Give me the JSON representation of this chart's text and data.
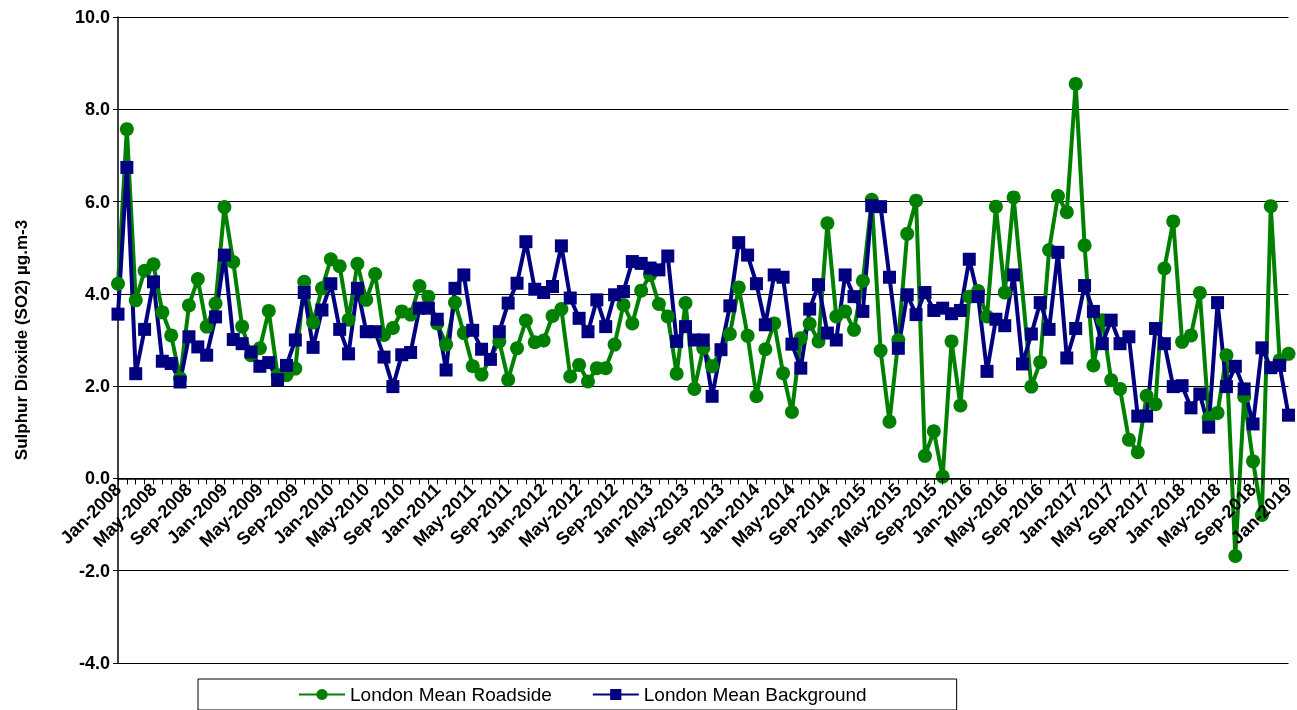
{
  "chart_data": {
    "type": "line",
    "ylabel": "Sulphur Dioxide (SO2) µg.m-3",
    "categories": [
      "Jan-2008",
      null,
      null,
      null,
      "May-2008",
      null,
      null,
      null,
      "Sep-2008",
      null,
      null,
      null,
      "Jan-2009",
      null,
      null,
      null,
      "May-2009",
      null,
      null,
      null,
      "Sep-2009",
      null,
      null,
      null,
      "Jan-2010",
      null,
      null,
      null,
      "May-2010",
      null,
      null,
      null,
      "Sep-2010",
      null,
      null,
      null,
      "Jan-2011",
      null,
      null,
      null,
      "May-2011",
      null,
      null,
      null,
      "Sep-2011",
      null,
      null,
      null,
      "Jan-2012",
      null,
      null,
      null,
      "May-2012",
      null,
      null,
      null,
      "Sep-2012",
      null,
      null,
      null,
      "Jan-2013",
      null,
      null,
      null,
      "May-2013",
      null,
      null,
      null,
      "Sep-2013",
      null,
      null,
      null,
      "Jan-2014",
      null,
      null,
      null,
      "May-2014",
      null,
      null,
      null,
      "Sep-2014",
      null,
      null,
      null,
      "Jan-2015",
      null,
      null,
      null,
      "May-2015",
      null,
      null,
      null,
      "Sep-2015",
      null,
      null,
      null,
      "Jan-2016",
      null,
      null,
      null,
      "May-2016",
      null,
      null,
      null,
      "Sep-2016",
      null,
      null,
      null,
      "Jan-2017",
      null,
      null,
      null,
      "May-2017",
      null,
      null,
      null,
      "Sep-2017",
      null,
      null,
      null,
      "Jan-2018",
      null,
      null,
      null,
      "May-2018",
      null,
      null,
      null,
      "Sep-2018",
      null,
      null,
      null,
      "Jan-2019"
    ],
    "series": [
      {
        "name": "London Mean Roadside",
        "color": "#008000",
        "marker": "circle",
        "values": [
          4.22,
          7.57,
          3.86,
          4.5,
          4.64,
          3.6,
          3.1,
          2.17,
          3.75,
          4.32,
          3.29,
          3.79,
          5.88,
          4.69,
          3.29,
          2.67,
          2.82,
          3.63,
          2.24,
          2.24,
          2.38,
          4.26,
          3.38,
          4.12,
          4.75,
          4.6,
          3.44,
          4.65,
          3.87,
          4.43,
          3.11,
          3.26,
          3.62,
          3.55,
          4.17,
          3.94,
          3.36,
          2.9,
          3.81,
          3.15,
          2.43,
          2.25,
          null,
          2.97,
          2.14,
          2.82,
          3.42,
          2.95,
          2.99,
          3.52,
          3.67,
          2.21,
          2.46,
          2.1,
          2.39,
          2.39,
          2.9,
          3.76,
          3.36,
          4.07,
          4.41,
          3.78,
          3.51,
          2.27,
          3.8,
          1.94,
          2.82,
          2.43,
          null,
          3.13,
          4.14,
          3.09,
          1.78,
          2.8,
          3.36,
          2.28,
          1.44,
          3.04,
          3.35,
          2.97,
          5.53,
          3.51,
          3.62,
          3.22,
          4.28,
          6.04,
          2.77,
          1.23,
          3.0,
          5.3,
          6.02,
          0.49,
          1.02,
          0.04,
          2.97,
          1.58,
          3.94,
          4.06,
          3.51,
          5.89,
          4.03,
          6.09,
          null,
          1.99,
          2.52,
          4.95,
          6.12,
          5.77,
          8.55,
          5.05,
          2.45,
          3.43,
          2.13,
          1.94,
          0.84,
          0.57,
          1.79,
          1.61,
          4.55,
          5.57,
          2.96,
          3.1,
          4.02,
          1.31,
          1.42,
          2.67,
          -1.68,
          1.77,
          0.37,
          -0.79,
          5.9,
          2.56,
          2.7
        ]
      },
      {
        "name": "London Mean Background",
        "color": "#000080",
        "marker": "square",
        "values": [
          3.56,
          6.74,
          2.27,
          3.23,
          4.26,
          2.54,
          2.49,
          2.09,
          3.07,
          2.85,
          2.67,
          3.5,
          4.84,
          3.01,
          2.92,
          2.74,
          2.43,
          2.51,
          2.14,
          2.45,
          3.0,
          4.03,
          2.84,
          3.65,
          4.22,
          3.23,
          2.7,
          4.12,
          3.18,
          3.18,
          2.63,
          1.99,
          2.68,
          2.73,
          3.69,
          3.69,
          3.45,
          2.35,
          4.12,
          4.41,
          3.21,
          2.8,
          2.58,
          3.18,
          3.8,
          4.23,
          5.13,
          4.1,
          4.03,
          4.16,
          5.04,
          3.91,
          3.47,
          3.18,
          3.87,
          3.29,
          3.98,
          4.05,
          4.7,
          4.66,
          4.56,
          4.52,
          4.82,
          2.97,
          3.29,
          3.0,
          3.0,
          1.78,
          2.79,
          3.74,
          5.11,
          4.84,
          4.22,
          3.33,
          4.41,
          4.36,
          2.91,
          2.39,
          3.67,
          4.2,
          3.15,
          3.0,
          4.41,
          3.94,
          3.62,
          5.91,
          5.89,
          4.36,
          2.82,
          3.98,
          3.55,
          4.03,
          3.64,
          3.69,
          3.57,
          3.64,
          4.75,
          3.94,
          2.32,
          3.45,
          3.31,
          4.41,
          2.48,
          3.13,
          3.81,
          3.23,
          4.9,
          2.61,
          3.25,
          4.18,
          3.62,
          2.92,
          3.43,
          2.92,
          3.07,
          1.35,
          1.35,
          3.25,
          2.92,
          1.99,
          2.01,
          1.53,
          1.83,
          1.11,
          3.81,
          1.99,
          2.43,
          1.94,
          1.18,
          2.83,
          2.4,
          2.45,
          1.37
        ]
      }
    ],
    "ylim": [
      -4,
      10
    ],
    "yticks": [
      {
        "value": -4,
        "label": "-4.0"
      },
      {
        "value": -2,
        "label": "-2.0"
      },
      {
        "value": 0,
        "label": "0.0"
      },
      {
        "value": 2,
        "label": "2.0"
      },
      {
        "value": 4,
        "label": "4.0"
      },
      {
        "value": 6,
        "label": "6.0"
      },
      {
        "value": 8,
        "label": "8.0"
      },
      {
        "value": 10,
        "label": "10.0"
      }
    ],
    "grid": "y",
    "legend": "bottom",
    "line_style": "solid"
  }
}
